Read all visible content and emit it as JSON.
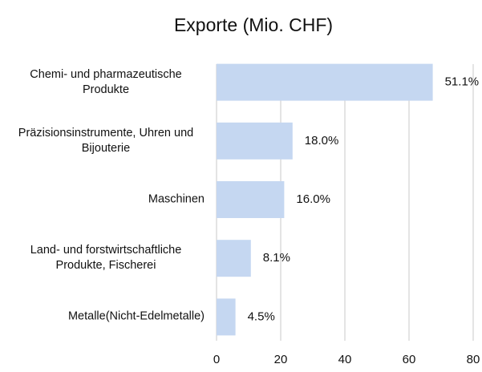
{
  "chart_data": {
    "type": "bar",
    "orientation": "horizontal",
    "title": "Exporte (Mio. CHF)",
    "categories": [
      "Chemi- und pharmazeutische Produkte",
      "Präzisionsinstrumente, Uhren und Bijouterie",
      "Maschinen",
      "Land- und forstwirtschaftliche Produkte, Fischerei",
      "Metalle(Nicht-Edelmetalle)"
    ],
    "values": [
      67.4,
      23.7,
      21.1,
      10.7,
      5.9
    ],
    "value_labels": [
      "51.1%",
      "18.0%",
      "16.0%",
      "8.1%",
      "4.5%"
    ],
    "color": "#c5d7f1",
    "xlim": [
      0,
      80
    ],
    "xticks": [
      0,
      20,
      40,
      60,
      80
    ],
    "grid": true
  }
}
